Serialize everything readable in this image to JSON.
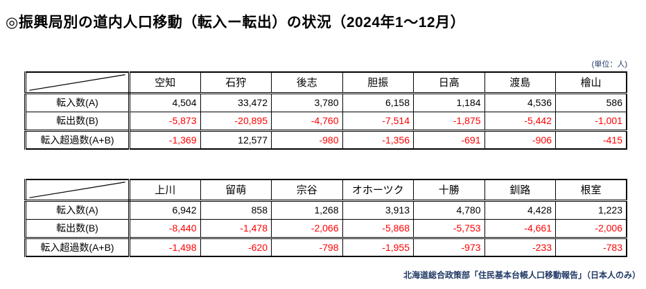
{
  "page": {
    "title": "◎振興局別の道内人口移動（転入ー転出）の状況（2024年1～12月）",
    "unit_label": "(単位：人)",
    "source_note": "北海道総合政策部「住民基本台帳人口移動報告」（日本人のみ）"
  },
  "colors": {
    "negative_value": "#ff0000",
    "text": "#000000",
    "note_text": "#1f3864",
    "border": "#000000",
    "background": "#ffffff"
  },
  "tables": [
    {
      "name": "table-bureaus-1",
      "columns": [
        "空知",
        "石狩",
        "後志",
        "胆振",
        "日高",
        "渡島",
        "檜山"
      ],
      "rows": [
        {
          "label": "転入数(A)",
          "values": [
            "4,504",
            "33,472",
            "3,780",
            "6,158",
            "1,184",
            "4,536",
            "586"
          ]
        },
        {
          "label": "転出数(B)",
          "values": [
            "-5,873",
            "-20,895",
            "-4,760",
            "-7,514",
            "-1,875",
            "-5,442",
            "-1,001"
          ]
        },
        {
          "label": "転入超過数(A+B)",
          "values": [
            "-1,369",
            "12,577",
            "-980",
            "-1,356",
            "-691",
            "-906",
            "-415"
          ]
        }
      ]
    },
    {
      "name": "table-bureaus-2",
      "columns": [
        "上川",
        "留萌",
        "宗谷",
        "オホーツク",
        "十勝",
        "釧路",
        "根室"
      ],
      "rows": [
        {
          "label": "転入数(A)",
          "values": [
            "6,942",
            "858",
            "1,268",
            "3,913",
            "4,780",
            "4,428",
            "1,223"
          ]
        },
        {
          "label": "転出数(B)",
          "values": [
            "-8,440",
            "-1,478",
            "-2,066",
            "-5,868",
            "-5,753",
            "-4,661",
            "-2,006"
          ]
        },
        {
          "label": "転入超過数(A+B)",
          "values": [
            "-1,498",
            "-620",
            "-798",
            "-1,955",
            "-973",
            "-233",
            "-783"
          ]
        }
      ]
    }
  ]
}
